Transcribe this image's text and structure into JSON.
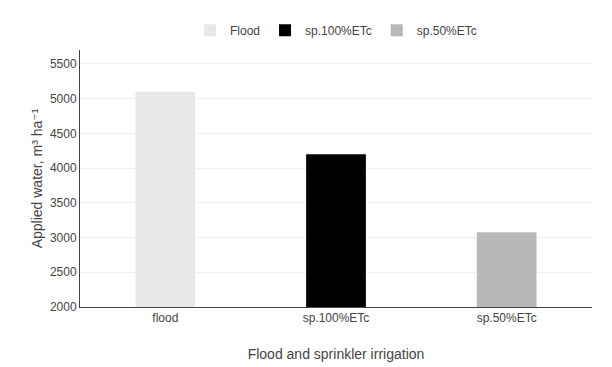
{
  "chart_data": {
    "type": "bar",
    "categories": [
      "flood",
      "sp.100%ETc",
      "sp.50%ETc"
    ],
    "series": [
      {
        "name": "Flood",
        "color": "#e8e8e8",
        "values": [
          5100,
          null,
          null
        ]
      },
      {
        "name": "sp.100%ETc",
        "color": "#000000",
        "values": [
          null,
          4200,
          null
        ]
      },
      {
        "name": "sp.50%ETc",
        "color": "#b8b8b8",
        "values": [
          null,
          null,
          3075
        ]
      }
    ],
    "xlabel": "Flood and sprinkler irrigation",
    "ylabel": "Applied water, m³ ha⁻¹",
    "ylim": [
      2000,
      5700
    ],
    "yticks": [
      2000,
      2500,
      3000,
      3500,
      4000,
      4500,
      5000,
      5500
    ],
    "grid": true,
    "legend": "top"
  }
}
